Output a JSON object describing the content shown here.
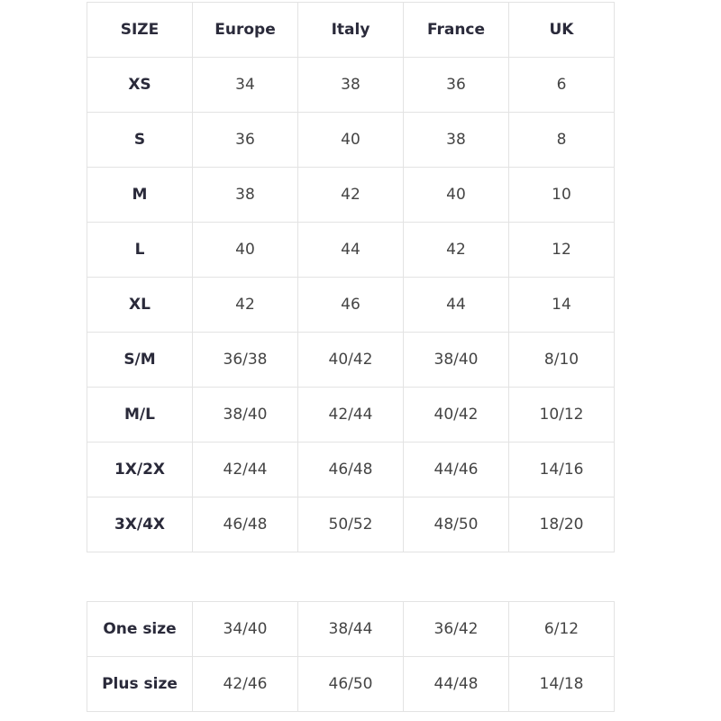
{
  "main_table": {
    "headers": [
      "SIZE",
      "Europe",
      "Italy",
      "France",
      "UK"
    ],
    "rows": [
      [
        "XS",
        "34",
        "38",
        "36",
        "6"
      ],
      [
        "S",
        "36",
        "40",
        "38",
        "8"
      ],
      [
        "M",
        "38",
        "42",
        "40",
        "10"
      ],
      [
        "L",
        "40",
        "44",
        "42",
        "12"
      ],
      [
        "XL",
        "42",
        "46",
        "44",
        "14"
      ],
      [
        "S/M",
        "36/38",
        "40/42",
        "38/40",
        "8/10"
      ],
      [
        "M/L",
        "38/40",
        "42/44",
        "40/42",
        "10/12"
      ],
      [
        "1X/2X",
        "42/44",
        "46/48",
        "44/46",
        "14/16"
      ],
      [
        "3X/4X",
        "46/48",
        "50/52",
        "48/50",
        "18/20"
      ]
    ]
  },
  "special_table": {
    "rows": [
      [
        "One size",
        "34/40",
        "38/44",
        "36/42",
        "6/12"
      ],
      [
        "Plus size",
        "42/46",
        "46/50",
        "44/48",
        "14/18"
      ]
    ]
  }
}
